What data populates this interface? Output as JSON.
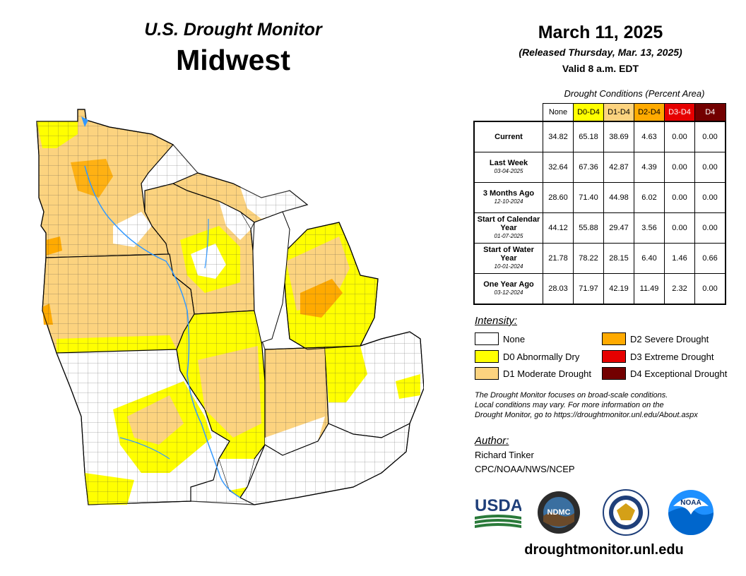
{
  "header": {
    "title": "U.S. Drought Monitor",
    "region": "Midwest",
    "date": "March 11, 2025",
    "released": "(Released Thursday, Mar. 13, 2025)",
    "valid": "Valid 8 a.m. EDT"
  },
  "table": {
    "title": "Drought Conditions (Percent Area)",
    "columns": [
      {
        "label": "None",
        "color": "#ffffff",
        "text_color": "#000000"
      },
      {
        "label": "D0-D4",
        "color": "#ffff00",
        "text_color": "#000000"
      },
      {
        "label": "D1-D4",
        "color": "#fcd37f",
        "text_color": "#000000"
      },
      {
        "label": "D2-D4",
        "color": "#ffaa00",
        "text_color": "#000000"
      },
      {
        "label": "D3-D4",
        "color": "#e60000",
        "text_color": "#ffffff"
      },
      {
        "label": "D4",
        "color": "#730000",
        "text_color": "#ffffff"
      }
    ],
    "rows": [
      {
        "label": "Current",
        "date": "",
        "values": [
          "34.82",
          "65.18",
          "38.69",
          "4.63",
          "0.00",
          "0.00"
        ]
      },
      {
        "label": "Last Week",
        "date": "03-04-2025",
        "values": [
          "32.64",
          "67.36",
          "42.87",
          "4.39",
          "0.00",
          "0.00"
        ]
      },
      {
        "label": "3 Months Ago",
        "date": "12-10-2024",
        "values": [
          "28.60",
          "71.40",
          "44.98",
          "6.02",
          "0.00",
          "0.00"
        ]
      },
      {
        "label": "Start of Calendar Year",
        "date": "01-07-2025",
        "values": [
          "44.12",
          "55.88",
          "29.47",
          "3.56",
          "0.00",
          "0.00"
        ]
      },
      {
        "label": "Start of Water Year",
        "date": "10-01-2024",
        "values": [
          "21.78",
          "78.22",
          "28.15",
          "6.40",
          "1.46",
          "0.66"
        ]
      },
      {
        "label": "One Year Ago",
        "date": "03-12-2024",
        "values": [
          "28.03",
          "71.97",
          "42.19",
          "11.49",
          "2.32",
          "0.00"
        ]
      }
    ]
  },
  "legend": {
    "title": "Intensity:",
    "items": [
      {
        "label": "None",
        "color": "#ffffff"
      },
      {
        "label": "D0 Abnormally Dry",
        "color": "#ffff00"
      },
      {
        "label": "D1 Moderate Drought",
        "color": "#fcd37f"
      },
      {
        "label": "D2 Severe Drought",
        "color": "#ffaa00"
      },
      {
        "label": "D3 Extreme Drought",
        "color": "#e60000"
      },
      {
        "label": "D4 Exceptional Drought",
        "color": "#730000"
      }
    ]
  },
  "note": {
    "line1": "The Drought Monitor focuses on broad-scale conditions.",
    "line2": "Local conditions may vary. For more information on the",
    "line3": "Drought Monitor, go to https://droughtmonitor.unl.edu/About.aspx"
  },
  "author": {
    "title": "Author:",
    "name": "Richard Tinker",
    "org": "CPC/NOAA/NWS/NCEP"
  },
  "logos": {
    "usda": "USDA",
    "ndmc": "NDMC",
    "noaa": "NOAA"
  },
  "footer_url": "droughtmonitor.unl.edu"
}
